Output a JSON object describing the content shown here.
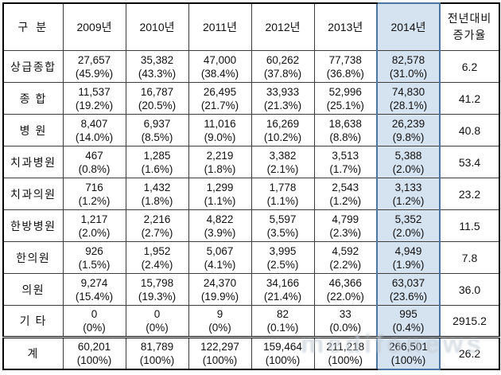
{
  "colors": {
    "highlight_fill": "#d5e2ef",
    "highlight_border": "#4a76a4",
    "grid_line": "#3c3c3c",
    "outer_border": "#000000",
    "text": "#111111",
    "watermark": "#c3ccd4"
  },
  "table": {
    "corner_header": "구 분",
    "year_headers": [
      "2009년",
      "2010년",
      "2011년",
      "2012년",
      "2013년",
      "2014년"
    ],
    "growth_header_line1": "전년대비",
    "growth_header_line2": "증가율",
    "highlight_year_index": 5,
    "rows": [
      {
        "label": "상급종합",
        "values": [
          {
            "count": "27,657",
            "pct": "(45.9%)"
          },
          {
            "count": "35,382",
            "pct": "(43.3%)"
          },
          {
            "count": "47,000",
            "pct": "(38.4%)"
          },
          {
            "count": "60,262",
            "pct": "(37.8%)"
          },
          {
            "count": "77,738",
            "pct": "(36.8%)"
          },
          {
            "count": "82,578",
            "pct": "(31.0%)"
          }
        ],
        "growth": "6.2",
        "is_total": false
      },
      {
        "label": "종 합",
        "values": [
          {
            "count": "11,537",
            "pct": "(19.2%)"
          },
          {
            "count": "16,787",
            "pct": "(20.5%)"
          },
          {
            "count": "26,495",
            "pct": "(21.7%)"
          },
          {
            "count": "33,933",
            "pct": "(21.3%)"
          },
          {
            "count": "52,996",
            "pct": "(25.1%)"
          },
          {
            "count": "74,830",
            "pct": "(28.1%)"
          }
        ],
        "growth": "41.2",
        "is_total": false
      },
      {
        "label": "병 원",
        "values": [
          {
            "count": "8,407",
            "pct": "(14.0%)"
          },
          {
            "count": "6,937",
            "pct": "(8.5%)"
          },
          {
            "count": "11,016",
            "pct": "(9.0%)"
          },
          {
            "count": "16,269",
            "pct": "(10.2%)"
          },
          {
            "count": "18,638",
            "pct": "(8.8%)"
          },
          {
            "count": "26,239",
            "pct": "(9.8%)"
          }
        ],
        "growth": "40.8",
        "is_total": false
      },
      {
        "label": "치과병원",
        "values": [
          {
            "count": "467",
            "pct": "(0.8%)"
          },
          {
            "count": "1,285",
            "pct": "(1.6%)"
          },
          {
            "count": "2,219",
            "pct": "(1.8%)"
          },
          {
            "count": "3,382",
            "pct": "(2.1%)"
          },
          {
            "count": "3,513",
            "pct": "(1.7%)"
          },
          {
            "count": "5,388",
            "pct": "(2.0%)"
          }
        ],
        "growth": "53.4",
        "is_total": false
      },
      {
        "label": "치과의원",
        "values": [
          {
            "count": "716",
            "pct": "(1.2%)"
          },
          {
            "count": "1,432",
            "pct": "(1.8%)"
          },
          {
            "count": "1,299",
            "pct": "(1.1%)"
          },
          {
            "count": "1,778",
            "pct": "(1.1%)"
          },
          {
            "count": "2,543",
            "pct": "(1.2%)"
          },
          {
            "count": "3,133",
            "pct": "(1.2%)"
          }
        ],
        "growth": "23.2",
        "is_total": false
      },
      {
        "label": "한방병원",
        "values": [
          {
            "count": "1,217",
            "pct": "(2.0%)"
          },
          {
            "count": "2,216",
            "pct": "(2.7%)"
          },
          {
            "count": "4,822",
            "pct": "(3.9%)"
          },
          {
            "count": "5,597",
            "pct": "(3.5%)"
          },
          {
            "count": "4,799",
            "pct": "(2.3%)"
          },
          {
            "count": "5,352",
            "pct": "(2.0%)"
          }
        ],
        "growth": "11.5",
        "is_total": false
      },
      {
        "label": "한의원",
        "values": [
          {
            "count": "926",
            "pct": "(1.5%)"
          },
          {
            "count": "1,952",
            "pct": "(2.4%)"
          },
          {
            "count": "5,067",
            "pct": "(4.1%)"
          },
          {
            "count": "3,995",
            "pct": "(2.5%)"
          },
          {
            "count": "4,592",
            "pct": "(2.2%)"
          },
          {
            "count": "4,949",
            "pct": "(1.9%)"
          }
        ],
        "growth": "7.8",
        "is_total": false
      },
      {
        "label": "의원",
        "values": [
          {
            "count": "9,274",
            "pct": "(15.4%)"
          },
          {
            "count": "15,798",
            "pct": "(19.3%)"
          },
          {
            "count": "24,370",
            "pct": "(19.9%)"
          },
          {
            "count": "34,166",
            "pct": "(21.4%)"
          },
          {
            "count": "46,366",
            "pct": "(22.0%)"
          },
          {
            "count": "63,037",
            "pct": "(23.6%)"
          }
        ],
        "growth": "36.0",
        "is_total": false
      },
      {
        "label": "기 타",
        "values": [
          {
            "count": "0",
            "pct": "(0%)"
          },
          {
            "count": "0",
            "pct": "(0%)"
          },
          {
            "count": "9",
            "pct": "(0%)"
          },
          {
            "count": "82",
            "pct": "(0.1%)"
          },
          {
            "count": "33",
            "pct": "(0.0%)"
          },
          {
            "count": "995",
            "pct": "(0.4%)"
          }
        ],
        "growth": "2915.2",
        "is_total": false
      },
      {
        "label": "계",
        "values": [
          {
            "count": "60,201",
            "pct": "(100%)"
          },
          {
            "count": "81,789",
            "pct": "(100%)"
          },
          {
            "count": "122,297",
            "pct": "(100%)"
          },
          {
            "count": "159,464",
            "pct": "(100%)"
          },
          {
            "count": "211,218",
            "pct": "(100%)"
          },
          {
            "count": "266,501",
            "pct": "(100%)"
          }
        ],
        "growth": "26.2",
        "is_total": true
      }
    ]
  },
  "watermark_text": "medifonews",
  "chart_data": {
    "type": "table",
    "columns": [
      "구분",
      "2009년",
      "2010년",
      "2011년",
      "2012년",
      "2013년",
      "2014년",
      "전년대비 증가율"
    ],
    "highlighted_column": "2014년",
    "rows": [
      [
        "상급종합",
        "27,657 (45.9%)",
        "35,382 (43.3%)",
        "47,000 (38.4%)",
        "60,262 (37.8%)",
        "77,738 (36.8%)",
        "82,578 (31.0%)",
        "6.2"
      ],
      [
        "종합",
        "11,537 (19.2%)",
        "16,787 (20.5%)",
        "26,495 (21.7%)",
        "33,933 (21.3%)",
        "52,996 (25.1%)",
        "74,830 (28.1%)",
        "41.2"
      ],
      [
        "병원",
        "8,407 (14.0%)",
        "6,937 (8.5%)",
        "11,016 (9.0%)",
        "16,269 (10.2%)",
        "18,638 (8.8%)",
        "26,239 (9.8%)",
        "40.8"
      ],
      [
        "치과병원",
        "467 (0.8%)",
        "1,285 (1.6%)",
        "2,219 (1.8%)",
        "3,382 (2.1%)",
        "3,513 (1.7%)",
        "5,388 (2.0%)",
        "53.4"
      ],
      [
        "치과의원",
        "716 (1.2%)",
        "1,432 (1.8%)",
        "1,299 (1.1%)",
        "1,778 (1.1%)",
        "2,543 (1.2%)",
        "3,133 (1.2%)",
        "23.2"
      ],
      [
        "한방병원",
        "1,217 (2.0%)",
        "2,216 (2.7%)",
        "4,822 (3.9%)",
        "5,597 (3.5%)",
        "4,799 (2.3%)",
        "5,352 (2.0%)",
        "11.5"
      ],
      [
        "한의원",
        "926 (1.5%)",
        "1,952 (2.4%)",
        "5,067 (4.1%)",
        "3,995 (2.5%)",
        "4,592 (2.2%)",
        "4,949 (1.9%)",
        "7.8"
      ],
      [
        "의원",
        "9,274 (15.4%)",
        "15,798 (19.3%)",
        "24,370 (19.9%)",
        "34,166 (21.4%)",
        "46,366 (22.0%)",
        "63,037 (23.6%)",
        "36.0"
      ],
      [
        "기타",
        "0 (0%)",
        "0 (0%)",
        "9 (0%)",
        "82 (0.1%)",
        "33 (0.0%)",
        "995 (0.4%)",
        "2915.2"
      ],
      [
        "계",
        "60,201 (100%)",
        "81,789 (100%)",
        "122,297 (100%)",
        "159,464 (100%)",
        "211,218 (100%)",
        "266,501 (100%)",
        "26.2"
      ]
    ]
  }
}
